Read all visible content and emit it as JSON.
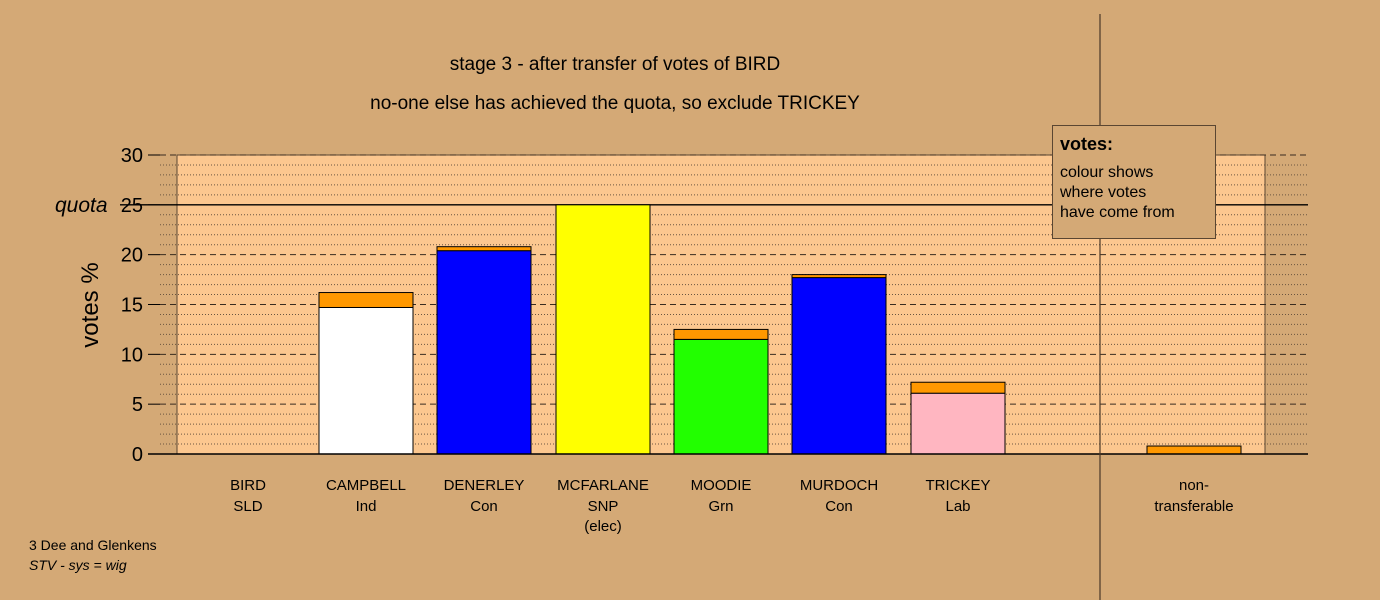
{
  "title_line1": "stage 3 - after transfer of votes of BIRD",
  "title_line2": "no-one else has achieved the quota, so exclude TRICKEY",
  "legend": {
    "heading": "votes:",
    "lines": [
      "colour shows",
      "where votes",
      "have come from"
    ]
  },
  "footer": {
    "line1": "3 Dee and Glenkens",
    "line2": "STV - sys = wig"
  },
  "colors": {
    "background": "#d4a976",
    "plot_area": "#fcc78f",
    "transfer_orange": "#ff9800"
  },
  "chart_data": {
    "type": "bar",
    "stacked": true,
    "ylabel": "votes %",
    "ylim": [
      0,
      30
    ],
    "yticks": [
      0,
      5,
      10,
      15,
      20,
      25,
      30
    ],
    "quota": {
      "value": 25,
      "label": "quota"
    },
    "grid": true,
    "categories": [
      {
        "name": "BIRD",
        "party": "SLD",
        "note": "",
        "first": 0,
        "transfer": 0,
        "color": "#d4a976"
      },
      {
        "name": "CAMPBELL",
        "party": "Ind",
        "note": "",
        "first": 14.7,
        "transfer": 1.5,
        "color": "#ffffff"
      },
      {
        "name": "DENERLEY",
        "party": "Con",
        "note": "",
        "first": 20.4,
        "transfer": 0.4,
        "color": "#0000ff"
      },
      {
        "name": "MCFARLANE",
        "party": "SNP",
        "note": "(elec)",
        "first": 25.0,
        "transfer": 0,
        "color": "#ffff00"
      },
      {
        "name": "MOODIE",
        "party": "Grn",
        "note": "",
        "first": 11.5,
        "transfer": 1.0,
        "color": "#22ff00"
      },
      {
        "name": "MURDOCH",
        "party": "Con",
        "note": "",
        "first": 17.7,
        "transfer": 0.3,
        "color": "#0000ff"
      },
      {
        "name": "TRICKEY",
        "party": "Lab",
        "note": "",
        "first": 6.1,
        "transfer": 1.1,
        "color": "#ffb6c1"
      }
    ],
    "nontransferable": {
      "label1": "non-",
      "label2": "transferable",
      "value": 0.8
    }
  }
}
